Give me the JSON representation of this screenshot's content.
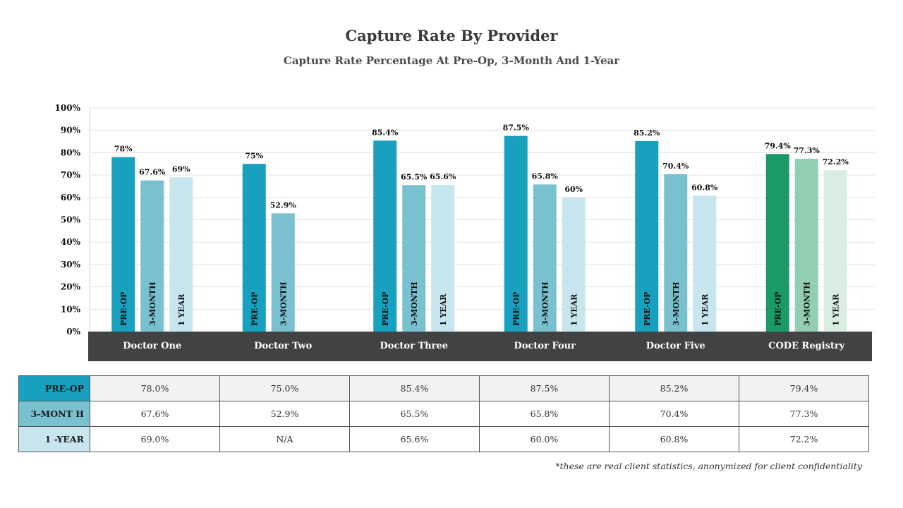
{
  "header": {
    "title": "Capture Rate By Provider",
    "subtitle": "Capture Rate Percentage At Pre-Op, 3-Month And 1-Year"
  },
  "colors": {
    "preop": "#17a1bf",
    "threemonth": "#7ac1d0",
    "oneyear": "#c7e5ec",
    "registry_preop": "#1a9a66",
    "registry_threemonth": "#92ceb0",
    "registry_oneyear": "#d9ede3",
    "category_band": "#414244"
  },
  "chart_data": {
    "type": "bar",
    "title": "Capture Rate By Provider",
    "subtitle": "Capture Rate Percentage At Pre-Op, 3-Month And 1-Year",
    "ylim": [
      0,
      100
    ],
    "yticks": [
      "0%",
      "10%",
      "20%",
      "30%",
      "40%",
      "50%",
      "60%",
      "70%",
      "80%",
      "90%",
      "100%"
    ],
    "categories": [
      "Doctor One",
      "Doctor Two",
      "Doctor Three",
      "Doctor Four",
      "Doctor Five",
      "CODE Registry"
    ],
    "series": [
      {
        "name": "PRE-OP",
        "values": [
          78,
          75,
          85.4,
          87.5,
          85.2,
          79.4
        ],
        "labels": [
          "78%",
          "75%",
          "85.4%",
          "87.5%",
          "85.2%",
          "79.4%"
        ]
      },
      {
        "name": "3-MONTH",
        "values": [
          67.6,
          52.9,
          65.5,
          65.8,
          70.4,
          77.3
        ],
        "labels": [
          "67.6%",
          "52.9%",
          "65.5%",
          "65.8%",
          "70.4%",
          "77.3%"
        ]
      },
      {
        "name": "1 YEAR",
        "values": [
          69,
          null,
          65.6,
          60,
          60.8,
          72.2
        ],
        "labels": [
          "69%",
          null,
          "65.6%",
          "60%",
          "60.8%",
          "72.2%"
        ]
      }
    ],
    "grid": true
  },
  "table": {
    "rows": [
      {
        "label": "PRE-OP",
        "cells": [
          "78.0%",
          "75.0%",
          "85.4%",
          "87.5%",
          "85.2%",
          "79.4%"
        ]
      },
      {
        "label": "3-MONT H",
        "cells": [
          "67.6%",
          "52.9%",
          "65.5%",
          "65.8%",
          "70.4%",
          "77.3%"
        ]
      },
      {
        "label": "1 -YEAR",
        "cells": [
          "69.0%",
          "N/A",
          "65.6%",
          "60.0%",
          "60.8%",
          "72.2%"
        ]
      }
    ]
  },
  "footnote": "*these are real client statistics, anonymized for client confidentiality"
}
